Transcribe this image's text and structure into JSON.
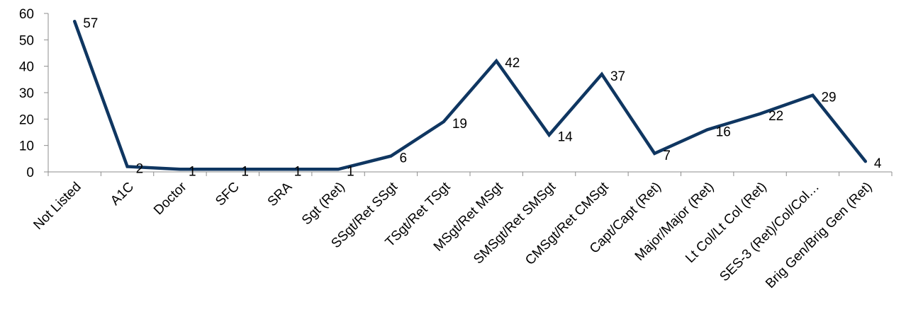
{
  "chart_data": {
    "type": "line",
    "title": "",
    "xlabel": "",
    "ylabel": "",
    "ylim": [
      0,
      60
    ],
    "yticks": [
      0,
      10,
      20,
      30,
      40,
      50,
      60
    ],
    "grid": false,
    "legend": "none",
    "categories": [
      "Not Listed",
      "A1C",
      "Doctor",
      "SFC",
      "SRA",
      "Sgt (Ret)",
      "SSgt/Ret SSgt",
      "TSgt/Ret TSgt",
      "MSgt/Ret MSgt",
      "SMSgt/Ret SMSgt",
      "CMSgt/Ret CMSgt",
      "Capt/Capt (Ret)",
      "Major/Major (Ret)",
      "Lt Col/Lt Col (Ret)",
      "SES-3 (Ret)/Col/Col…",
      "Brig Gen/Brig Gen (Ret)"
    ],
    "series": [
      {
        "values": [
          57,
          2,
          1,
          1,
          1,
          1,
          6,
          19,
          42,
          14,
          37,
          7,
          16,
          22,
          29,
          4
        ],
        "color": "#0f3661"
      }
    ],
    "data_labels": true
  }
}
